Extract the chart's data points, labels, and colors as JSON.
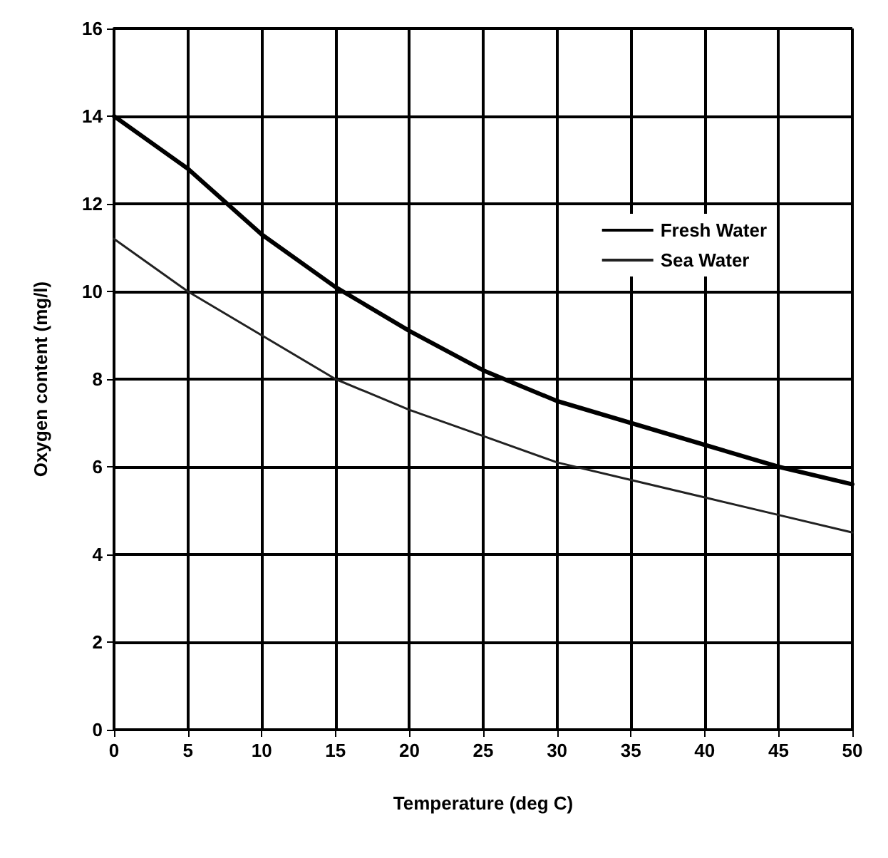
{
  "chart_data": {
    "type": "line",
    "xlabel": "Temperature (deg C)",
    "ylabel": "Oxygen content (mg/l)",
    "x": [
      0,
      5,
      10,
      15,
      20,
      25,
      30,
      35,
      40,
      45,
      50
    ],
    "series": [
      {
        "name": "Fresh Water",
        "color": "#000000",
        "values": [
          14.0,
          12.8,
          11.3,
          10.1,
          9.1,
          8.2,
          7.5,
          7.0,
          6.5,
          6.0,
          5.6
        ]
      },
      {
        "name": "Sea Water",
        "color": "#222222",
        "values": [
          11.2,
          10.0,
          9.0,
          8.0,
          7.3,
          6.7,
          6.1,
          5.7,
          5.3,
          4.9,
          4.5
        ]
      }
    ],
    "xlim": [
      0,
      50
    ],
    "xticks": [
      0,
      5,
      10,
      15,
      20,
      25,
      30,
      35,
      40,
      45,
      50
    ],
    "ylim": [
      0,
      16
    ],
    "yticks": [
      0,
      2,
      4,
      6,
      8,
      10,
      12,
      14,
      16
    ],
    "grid": true,
    "legend": "top right",
    "marker": "none",
    "line_style": "solid"
  }
}
